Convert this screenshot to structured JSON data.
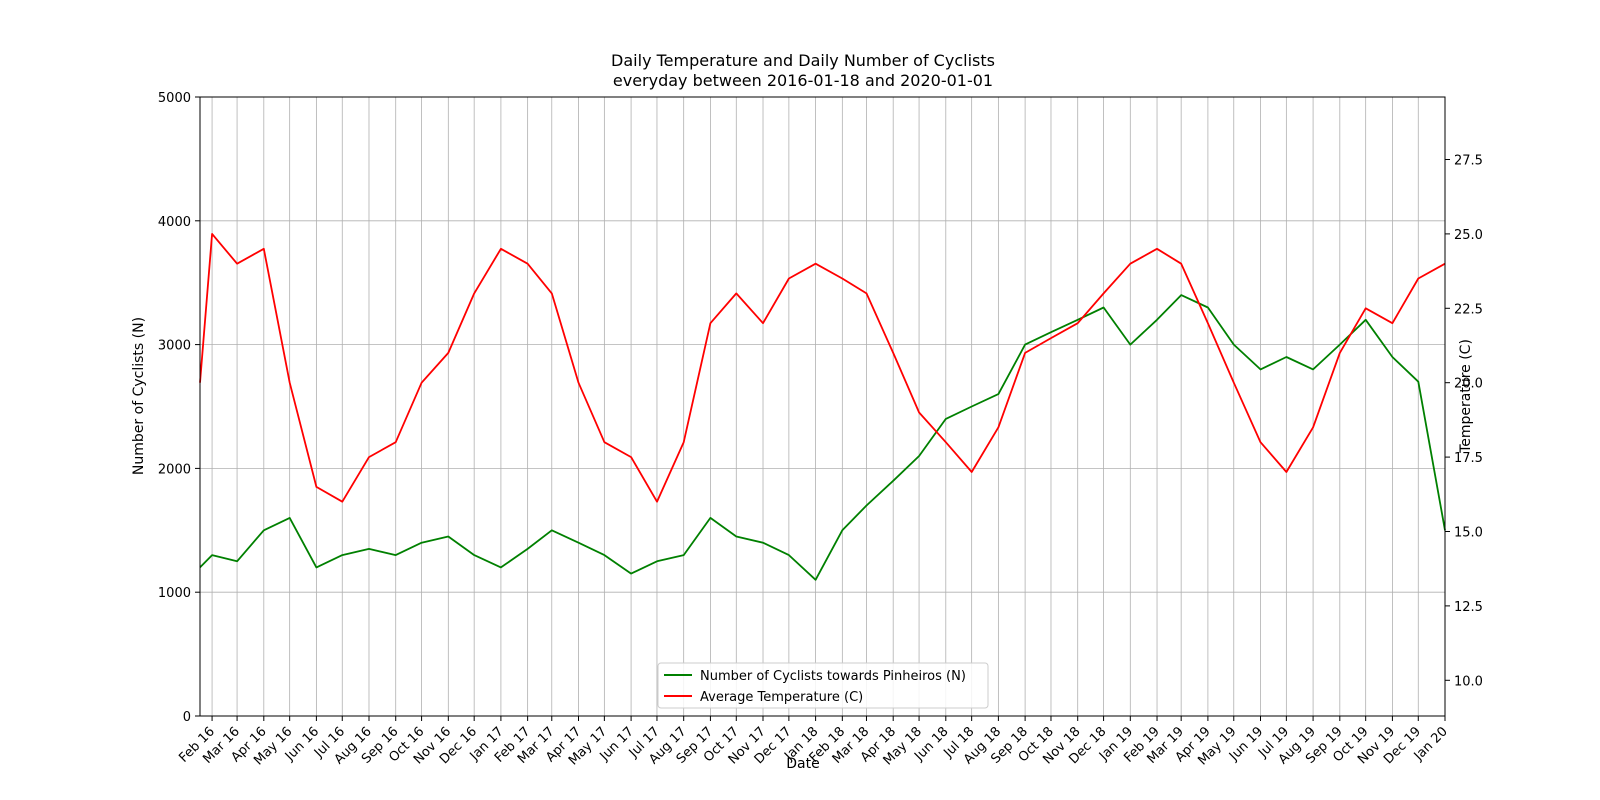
{
  "chart_data": {
    "type": "line",
    "title": "Daily Temperature and Daily Number of Cyclists",
    "subtitle": "everyday between 2016-01-18 and 2020-01-01",
    "xlabel": "Date",
    "ylabel": "Number of Cyclists (N)",
    "y2label": "Temperature (C)",
    "xlim": [
      "2016-01-18",
      "2020-01-01"
    ],
    "ylim": [
      0,
      5000
    ],
    "y2lim": [
      8.8,
      29.6
    ],
    "grid": true,
    "legend_position": "bottom-center",
    "x_tick_labels": [
      "Feb 16",
      "Mar 16",
      "Apr 16",
      "May 16",
      "Jun 16",
      "Jul 16",
      "Aug 16",
      "Sep 16",
      "Oct 16",
      "Nov 16",
      "Dec 16",
      "Jan 17",
      "Feb 17",
      "Mar 17",
      "Apr 17",
      "May 17",
      "Jun 17",
      "Jul 17",
      "Aug 17",
      "Sep 17",
      "Oct 17",
      "Nov 17",
      "Dec 17",
      "Jan 18",
      "Feb 18",
      "Mar 18",
      "Apr 18",
      "May 18",
      "Jun 18",
      "Jul 18",
      "Aug 18",
      "Sep 18",
      "Oct 18",
      "Nov 18",
      "Dec 18",
      "Jan 19",
      "Feb 19",
      "Mar 19",
      "Apr 19",
      "May 19",
      "Jun 19",
      "Jul 19",
      "Aug 19",
      "Sep 19",
      "Oct 19",
      "Nov 19",
      "Dec 19",
      "Jan 20"
    ],
    "x_tick_dates": [
      "2016-02-01",
      "2016-03-01",
      "2016-04-01",
      "2016-05-01",
      "2016-06-01",
      "2016-07-01",
      "2016-08-01",
      "2016-09-01",
      "2016-10-01",
      "2016-11-01",
      "2016-12-01",
      "2017-01-01",
      "2017-02-01",
      "2017-03-01",
      "2017-04-01",
      "2017-05-01",
      "2017-06-01",
      "2017-07-01",
      "2017-08-01",
      "2017-09-01",
      "2017-10-01",
      "2017-11-01",
      "2017-12-01",
      "2018-01-01",
      "2018-02-01",
      "2018-03-01",
      "2018-04-01",
      "2018-05-01",
      "2018-06-01",
      "2018-07-01",
      "2018-08-01",
      "2018-09-01",
      "2018-10-01",
      "2018-11-01",
      "2018-12-01",
      "2019-01-01",
      "2019-02-01",
      "2019-03-01",
      "2019-04-01",
      "2019-05-01",
      "2019-06-01",
      "2019-07-01",
      "2019-08-01",
      "2019-09-01",
      "2019-10-01",
      "2019-11-01",
      "2019-12-01",
      "2020-01-01"
    ],
    "y_ticks": [
      0,
      1000,
      2000,
      3000,
      4000,
      5000
    ],
    "y2_ticks": [
      "10.0",
      "12.5",
      "15.0",
      "17.5",
      "20.0",
      "22.5",
      "25.0",
      "27.5"
    ],
    "series": [
      {
        "name": "Number of Cyclists towards Pinheiros (N)",
        "axis": "left",
        "color": "#008000",
        "x": [
          "2016-01-18",
          "2016-02-01",
          "2016-03-01",
          "2016-04-01",
          "2016-05-01",
          "2016-06-01",
          "2016-07-01",
          "2016-08-01",
          "2016-09-01",
          "2016-10-01",
          "2016-11-01",
          "2016-12-01",
          "2017-01-01",
          "2017-02-01",
          "2017-03-01",
          "2017-04-01",
          "2017-05-01",
          "2017-06-01",
          "2017-07-01",
          "2017-08-01",
          "2017-09-01",
          "2017-10-01",
          "2017-11-01",
          "2017-12-01",
          "2018-01-01",
          "2018-02-01",
          "2018-03-01",
          "2018-04-01",
          "2018-05-01",
          "2018-06-01",
          "2018-07-01",
          "2018-08-01",
          "2018-09-01",
          "2018-10-01",
          "2018-11-01",
          "2018-12-01",
          "2019-01-01",
          "2019-02-01",
          "2019-03-01",
          "2019-04-01",
          "2019-05-01",
          "2019-06-01",
          "2019-07-01",
          "2019-08-01",
          "2019-09-01",
          "2019-10-01",
          "2019-11-01",
          "2019-12-01",
          "2020-01-01"
        ],
        "y": [
          1200,
          1300,
          1250,
          1500,
          1600,
          1200,
          1300,
          1350,
          1300,
          1400,
          1450,
          1300,
          1200,
          1350,
          1500,
          1400,
          1300,
          1150,
          1250,
          1300,
          1600,
          1450,
          1400,
          1300,
          1100,
          1500,
          1700,
          1900,
          2100,
          2400,
          2500,
          2600,
          3000,
          3100,
          3200,
          3300,
          3000,
          3200,
          3400,
          3300,
          3000,
          2800,
          2900,
          2800,
          3000,
          3200,
          2900,
          2700,
          1500
        ]
      },
      {
        "name": "Average Temperature (C)",
        "axis": "right",
        "color": "#ff0000",
        "x": [
          "2016-01-18",
          "2016-02-01",
          "2016-03-01",
          "2016-04-01",
          "2016-05-01",
          "2016-06-01",
          "2016-07-01",
          "2016-08-01",
          "2016-09-01",
          "2016-10-01",
          "2016-11-01",
          "2016-12-01",
          "2017-01-01",
          "2017-02-01",
          "2017-03-01",
          "2017-04-01",
          "2017-05-01",
          "2017-06-01",
          "2017-07-01",
          "2017-08-01",
          "2017-09-01",
          "2017-10-01",
          "2017-11-01",
          "2017-12-01",
          "2018-01-01",
          "2018-02-01",
          "2018-03-01",
          "2018-04-01",
          "2018-05-01",
          "2018-06-01",
          "2018-07-01",
          "2018-08-01",
          "2018-09-01",
          "2018-10-01",
          "2018-11-01",
          "2018-12-01",
          "2019-01-01",
          "2019-02-01",
          "2019-03-01",
          "2019-04-01",
          "2019-05-01",
          "2019-06-01",
          "2019-07-01",
          "2019-08-01",
          "2019-09-01",
          "2019-10-01",
          "2019-11-01",
          "2019-12-01",
          "2020-01-01"
        ],
        "y": [
          20.0,
          25.0,
          24.0,
          24.5,
          20.0,
          16.5,
          16.0,
          17.5,
          18.0,
          20.0,
          21.0,
          23.0,
          24.5,
          24.0,
          23.0,
          20.0,
          18.0,
          17.5,
          16.0,
          18.0,
          22.0,
          23.0,
          22.0,
          23.5,
          24.0,
          23.5,
          23.0,
          21.0,
          19.0,
          18.0,
          17.0,
          18.5,
          21.0,
          21.5,
          22.0,
          23.0,
          24.0,
          24.5,
          24.0,
          22.0,
          20.0,
          18.0,
          17.0,
          18.5,
          21.0,
          22.5,
          22.0,
          23.5,
          24.0
        ]
      }
    ]
  }
}
